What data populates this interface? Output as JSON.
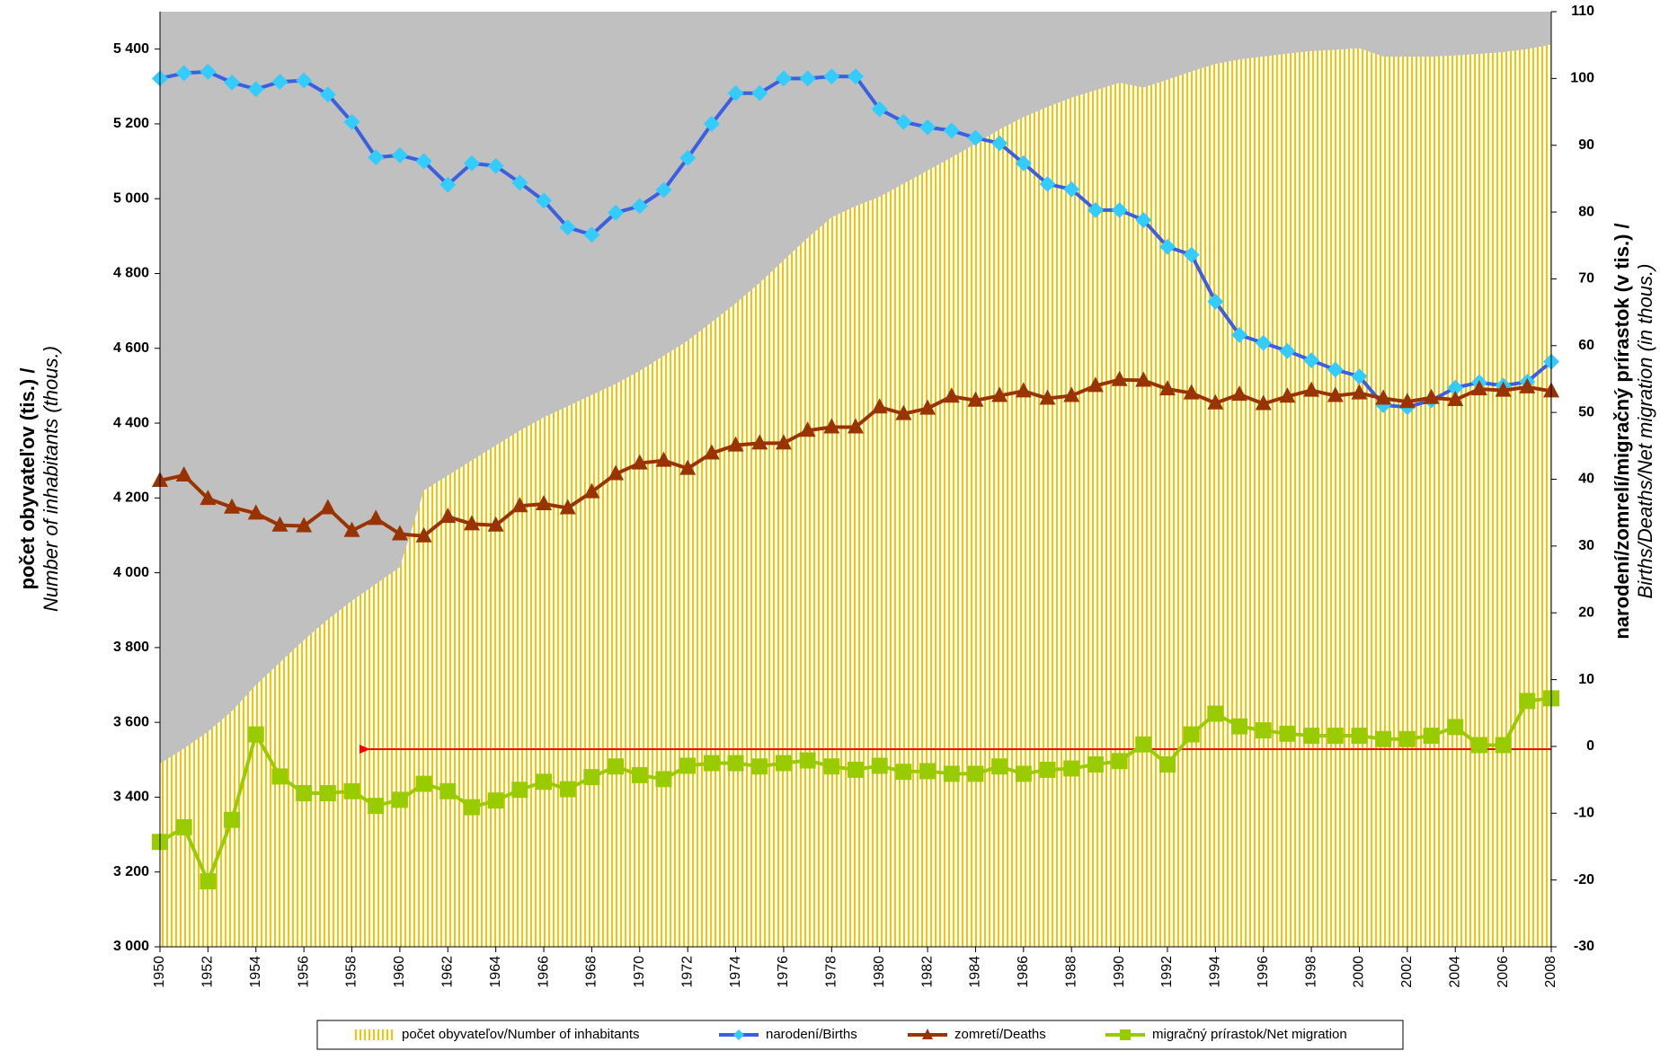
{
  "chart_data": {
    "type": "line",
    "x": [
      1950,
      1951,
      1952,
      1953,
      1954,
      1955,
      1956,
      1957,
      1958,
      1959,
      1960,
      1961,
      1962,
      1963,
      1964,
      1965,
      1966,
      1967,
      1968,
      1969,
      1970,
      1971,
      1972,
      1973,
      1974,
      1975,
      1976,
      1977,
      1978,
      1979,
      1980,
      1981,
      1982,
      1983,
      1984,
      1985,
      1986,
      1987,
      1988,
      1989,
      1990,
      1991,
      1992,
      1993,
      1994,
      1995,
      1996,
      1997,
      1998,
      1999,
      2000,
      2001,
      2002,
      2003,
      2004,
      2005,
      2006,
      2007,
      2008
    ],
    "xlim": [
      1950,
      2008
    ],
    "xticks": [
      1950,
      1952,
      1954,
      1956,
      1958,
      1960,
      1962,
      1964,
      1966,
      1968,
      1970,
      1972,
      1974,
      1976,
      1978,
      1980,
      1982,
      1984,
      1986,
      1988,
      1990,
      1992,
      1994,
      1996,
      1998,
      2000,
      2002,
      2004,
      2006,
      2008
    ],
    "ylim": [
      3000,
      5500
    ],
    "yticks": [
      {
        "value": 3000,
        "label": "3 000"
      },
      {
        "value": 3200,
        "label": "3 200"
      },
      {
        "value": 3400,
        "label": "3 400"
      },
      {
        "value": 3600,
        "label": "3 600"
      },
      {
        "value": 3800,
        "label": "3 800"
      },
      {
        "value": 4000,
        "label": "4 000"
      },
      {
        "value": 4200,
        "label": "4 200"
      },
      {
        "value": 4400,
        "label": "4 400"
      },
      {
        "value": 4600,
        "label": "4 600"
      },
      {
        "value": 4800,
        "label": "4 800"
      },
      {
        "value": 5000,
        "label": "5 000"
      },
      {
        "value": 5200,
        "label": "5 200"
      },
      {
        "value": 5400,
        "label": "5 400"
      }
    ],
    "y2lim": [
      -30,
      110
    ],
    "y2ticks": [
      -30,
      -20,
      -10,
      0,
      10,
      20,
      30,
      40,
      50,
      60,
      70,
      80,
      90,
      100,
      110
    ],
    "ylabel": [
      "počet obyvateľov (tis.) /",
      "Number of inhabitants (thous.)"
    ],
    "y2label": [
      "narodení/zomrelí/migračný prírastok (v tis.) /",
      "Births/Deaths/Net migration (in thous.)"
    ],
    "background": "#c0c0c0",
    "series": [
      {
        "name": "počet obyvateľov/Number of inhabitants",
        "type": "area",
        "color": "#f5c400",
        "axis": "y",
        "values": [
          3490,
          3530,
          3575,
          3630,
          3700,
          3760,
          3820,
          3875,
          3925,
          3970,
          4015,
          4220,
          4260,
          4300,
          4340,
          4380,
          4415,
          4445,
          4475,
          4505,
          4540,
          4580,
          4620,
          4670,
          4720,
          4775,
          4835,
          4895,
          4950,
          4980,
          5005,
          5040,
          5075,
          5110,
          5147,
          5185,
          5218,
          5245,
          5270,
          5290,
          5310,
          5297,
          5318,
          5340,
          5360,
          5372,
          5380,
          5388,
          5395,
          5398,
          5402,
          5380,
          5380,
          5380,
          5383,
          5387,
          5392,
          5400,
          5412
        ]
      },
      {
        "name": "narodení/Births",
        "type": "line",
        "marker": "diamond",
        "color": "#3a5fe0",
        "marker_color": "#33ccff",
        "axis": "y2",
        "values": [
          100,
          100.8,
          101,
          99.4,
          98.4,
          99.5,
          99.7,
          97.6,
          93.5,
          88.2,
          88.5,
          87.6,
          84.1,
          87.3,
          86.9,
          84.4,
          81.7,
          77.7,
          76.6,
          79.9,
          80.9,
          83.3,
          88.1,
          93.2,
          97.8,
          97.8,
          100,
          100,
          100.3,
          100.3,
          95.4,
          93.5,
          92.7,
          92.2,
          91.1,
          90.3,
          87.3,
          84.2,
          83.4,
          80.3,
          80.3,
          78.8,
          74.8,
          73.6,
          66.6,
          61.6,
          60.4,
          59.2,
          57.8,
          56.4,
          55.4,
          51.1,
          50.8,
          51.8,
          53.7,
          54.5,
          54,
          54.6,
          57.6
        ]
      },
      {
        "name": "zomretí/Deaths",
        "type": "line",
        "marker": "triangle",
        "color": "#993300",
        "marker_color": "#993300",
        "axis": "y2",
        "values": [
          39.8,
          40.6,
          37.1,
          35.8,
          34.9,
          33.1,
          33,
          35.7,
          32.3,
          34.1,
          31.8,
          31.5,
          34.4,
          33.3,
          33.1,
          36,
          36.3,
          35.7,
          38.1,
          40.8,
          42.4,
          42.8,
          41.6,
          43.9,
          45.1,
          45.4,
          45.4,
          47.3,
          47.8,
          47.8,
          50.8,
          49.8,
          50.6,
          52.4,
          51.8,
          52.5,
          53.2,
          52.1,
          52.5,
          54,
          54.9,
          54.8,
          53.5,
          52.9,
          51.4,
          52.7,
          51.3,
          52.4,
          53.3,
          52.5,
          52.9,
          52.1,
          51.6,
          52.2,
          51.9,
          53.5,
          53.3,
          53.8,
          53.2
        ]
      },
      {
        "name": "migračný prírastok/Net migration",
        "type": "line",
        "marker": "square",
        "color": "#99cc00",
        "marker_color": "#99cc00",
        "axis": "y2",
        "values": [
          -14.3,
          -12.1,
          -20.2,
          -11,
          1.8,
          -4.5,
          -7,
          -7,
          -6.7,
          -8.9,
          -8,
          -5.6,
          -6.7,
          -9.1,
          -8.1,
          -6.5,
          -5.3,
          -6.4,
          -4.6,
          -3,
          -4.3,
          -4.9,
          -2.9,
          -2.5,
          -2.5,
          -3,
          -2.5,
          -2.1,
          -3,
          -3.5,
          -2.9,
          -3.8,
          -3.7,
          -4.1,
          -4.1,
          -3,
          -4.1,
          -3.5,
          -3.3,
          -2.7,
          -2.2,
          0.3,
          -2.7,
          1.8,
          4.9,
          3,
          2.4,
          1.9,
          1.6,
          1.6,
          1.6,
          1.1,
          1.1,
          1.6,
          2.9,
          0.2,
          0.2,
          6.8,
          7.2
        ]
      }
    ]
  }
}
